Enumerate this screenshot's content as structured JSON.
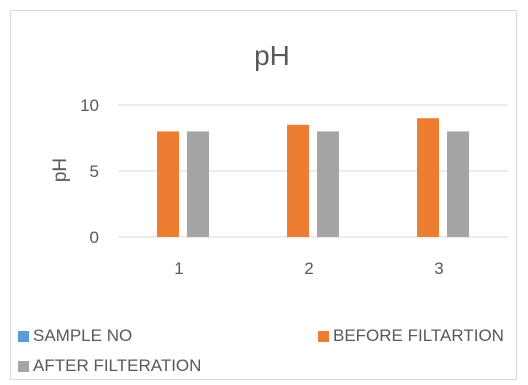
{
  "chart_data": {
    "type": "bar",
    "title": "pH",
    "xlabel": "",
    "ylabel": "pH",
    "categories": [
      "1",
      "2",
      "3"
    ],
    "series": [
      {
        "name": "SAMPLE NO",
        "color": "#5b9bd5",
        "values": [
          0,
          0,
          0
        ]
      },
      {
        "name": "BEFORE FILTARTION",
        "color": "#ed7d31",
        "values": [
          8,
          8.5,
          9
        ]
      },
      {
        "name": "AFTER FILTERATION",
        "color": "#a5a5a5",
        "values": [
          8,
          8,
          8
        ]
      }
    ],
    "yticks": [
      "0",
      "5",
      "10"
    ],
    "ylim": [
      0,
      10
    ],
    "grid": true,
    "legend_position": "bottom"
  }
}
